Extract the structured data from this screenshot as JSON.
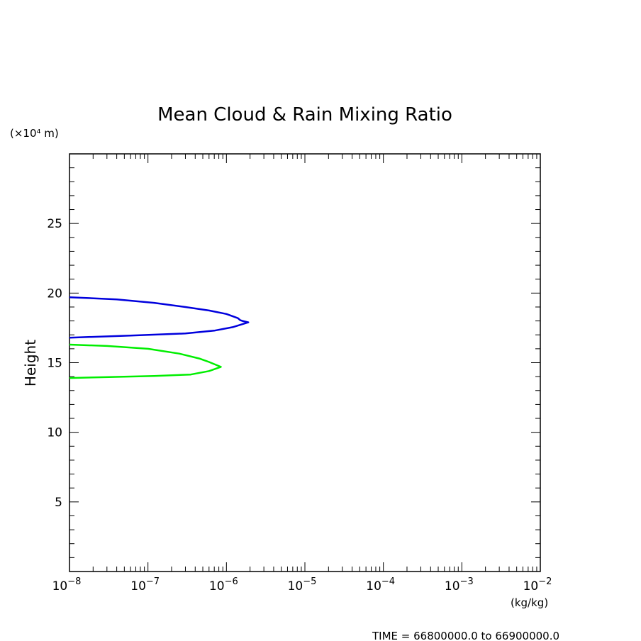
{
  "chart_data": {
    "type": "line",
    "title": "Mean Cloud & Rain Mixing Ratio",
    "ylabel": "Height",
    "yunit": "(×10⁴ m)",
    "xunit": "(kg/kg)",
    "xscale": "log",
    "xlim": [
      1e-08,
      0.01
    ],
    "ylim": [
      0,
      30
    ],
    "yticks": [
      5,
      10,
      15,
      20,
      25
    ],
    "ytick_labels": [
      "5",
      "10",
      "15",
      "20",
      "25"
    ],
    "xticks": [
      1e-08,
      1e-07,
      1e-06,
      1e-05,
      0.0001,
      0.001,
      0.01
    ],
    "xtick_mantissa": "10",
    "xtick_exponents": [
      "−8",
      "−7",
      "−6",
      "−5",
      "−4",
      "−3",
      "−2"
    ],
    "grid": false,
    "series": [
      {
        "color": "#0000dd",
        "points": [
          [
            1e-08,
            19.7
          ],
          [
            4e-08,
            19.55
          ],
          [
            1.2e-07,
            19.3
          ],
          [
            3e-07,
            19.0
          ],
          [
            6e-07,
            18.75
          ],
          [
            1e-06,
            18.5
          ],
          [
            1.4e-06,
            18.2
          ],
          [
            1.5e-06,
            18.05
          ],
          [
            1.6e-06,
            18.0
          ],
          [
            1.9e-06,
            17.9
          ],
          [
            1.2e-06,
            17.55
          ],
          [
            7e-07,
            17.3
          ],
          [
            3e-07,
            17.1
          ],
          [
            6e-08,
            16.95
          ],
          [
            1e-08,
            16.8
          ]
        ]
      },
      {
        "color": "#00ee00",
        "points": [
          [
            1e-08,
            16.3
          ],
          [
            3e-08,
            16.2
          ],
          [
            1e-07,
            16.0
          ],
          [
            2.5e-07,
            15.65
          ],
          [
            4.5e-07,
            15.3
          ],
          [
            6e-07,
            15.05
          ],
          [
            8.5e-07,
            14.7
          ],
          [
            6e-07,
            14.4
          ],
          [
            3.5e-07,
            14.15
          ],
          [
            1.2e-07,
            14.05
          ],
          [
            1e-08,
            13.9
          ]
        ]
      }
    ]
  },
  "footer": {
    "time_text": "TIME = 66800000.0 to 66900000.0"
  }
}
